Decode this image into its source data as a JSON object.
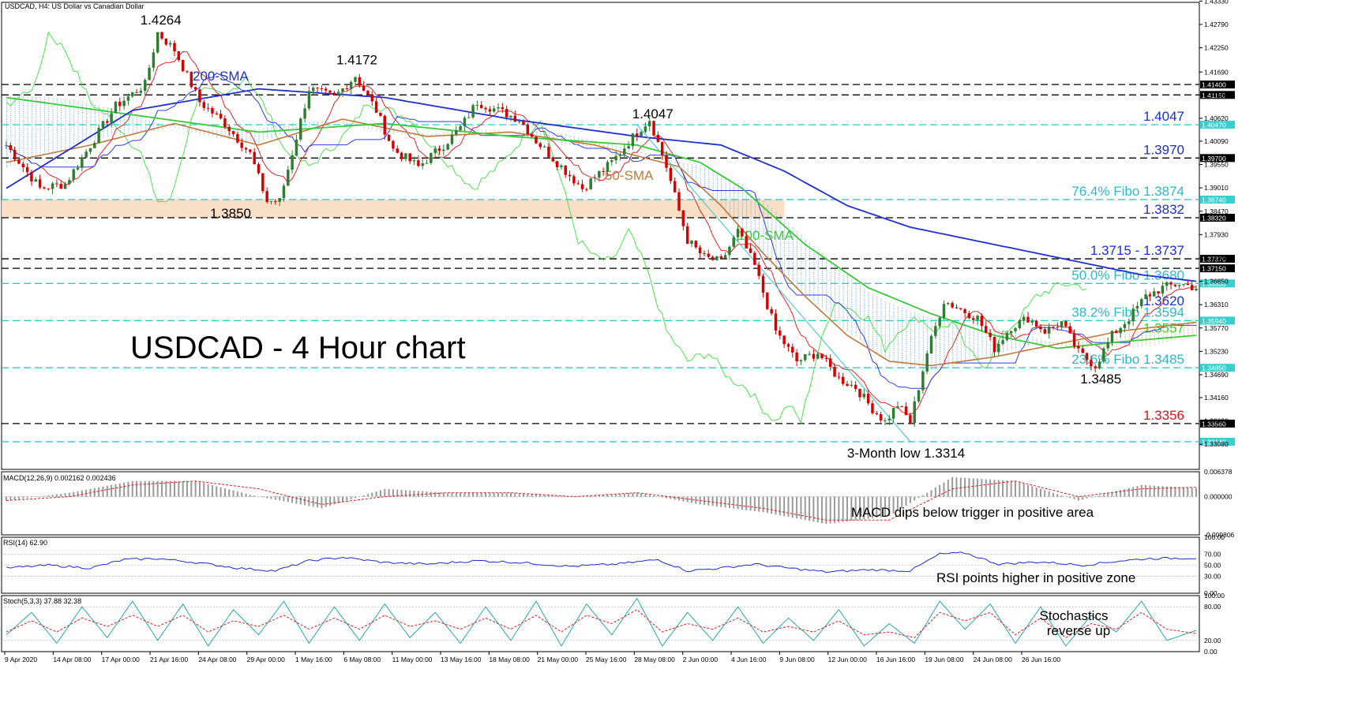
{
  "header": {
    "main": "USDCAD, H4:  US Dollar vs Canadian Dollar",
    "macd": "MACD(12,26,9) 0.002162 0.002436",
    "rsi": "RSI(14) 62.90",
    "stoch": "Stoch(5,3,3) 37.88 32.38"
  },
  "overlay": {
    "title": "USDCAD - 4 Hour chart",
    "note_macd": "MACD dips below trigger in positive area",
    "note_rsi": "RSI points higher in positive zone",
    "note_stoch_1": "Stochastics",
    "note_stoch_2": "reverse up"
  },
  "colors": {
    "bull": "#2e7d32",
    "bear": "#d50000",
    "sma200": "#1f2fd0",
    "sma100": "#3ac93a",
    "sma50": "#c07a3b",
    "tenkan": "#e0282a",
    "kijun": "#2f3fe0",
    "chikou": "#52e052",
    "cloud_blue": "#6aa6e0",
    "cloud_orange": "#e6a060",
    "zone": "#f7dcc0",
    "cyan": "#37c6c6",
    "annot_blue": "#1f2fd0",
    "annot_green": "#2fd82f",
    "annot_cyan": "#2eb8c8",
    "annot_red": "#e0101a",
    "tag_cyan": "#37d0d0",
    "tag_black": "#000000"
  },
  "chart_data": [
    {
      "type": "candlestick",
      "title": "USDCAD, H4:  US Dollar vs Canadian Dollar",
      "ylim": [
        1.325,
        1.433
      ],
      "y_ticks": [
        "1.43330",
        "1.42790",
        "1.42250",
        "1.41690",
        "1.41160",
        "1.40620",
        "1.40090",
        "1.39550",
        "1.39010",
        "1.38470",
        "1.37930",
        "1.37390",
        "1.36850",
        "1.36310",
        "1.35770",
        "1.35230",
        "1.34690",
        "1.34160",
        "1.33620",
        "1.33080"
      ],
      "x_ticks": [
        "9 Apr 2020",
        "14 Apr 08:00",
        "17 Apr 00:00",
        "21 Apr 16:00",
        "24 Apr 08:00",
        "29 Apr 00:00",
        "1 May 16:00",
        "6 May 08:00",
        "11 May 00:00",
        "13 May 16:00",
        "18 May 08:00",
        "21 May 00:00",
        "25 May 16:00",
        "28 May 08:00",
        "2 Jun 00:00",
        "4 Jun 16:00",
        "9 Jun 08:00",
        "12 Jun 00:00",
        "16 Jun 16:00",
        "19 Jun 08:00",
        "24 Jun 08:00",
        "26 Jun 16:00"
      ],
      "close_anchors": [
        [
          0,
          1.4
        ],
        [
          8,
          1.39
        ],
        [
          14,
          1.391
        ],
        [
          26,
          1.409
        ],
        [
          33,
          1.414
        ],
        [
          36,
          1.426
        ],
        [
          40,
          1.422
        ],
        [
          46,
          1.41
        ],
        [
          52,
          1.405
        ],
        [
          58,
          1.398
        ],
        [
          62,
          1.387
        ],
        [
          65,
          1.387
        ],
        [
          72,
          1.413
        ],
        [
          78,
          1.411
        ],
        [
          83,
          1.416
        ],
        [
          88,
          1.408
        ],
        [
          92,
          1.399
        ],
        [
          98,
          1.395
        ],
        [
          104,
          1.4
        ],
        [
          108,
          1.404
        ],
        [
          112,
          1.41
        ],
        [
          117,
          1.408
        ],
        [
          122,
          1.406
        ],
        [
          126,
          1.401
        ],
        [
          131,
          1.396
        ],
        [
          137,
          1.39
        ],
        [
          144,
          1.396
        ],
        [
          150,
          1.403
        ],
        [
          153,
          1.406
        ],
        [
          157,
          1.395
        ],
        [
          162,
          1.378
        ],
        [
          166,
          1.374
        ],
        [
          170,
          1.373
        ],
        [
          174,
          1.38
        ],
        [
          178,
          1.372
        ],
        [
          183,
          1.357
        ],
        [
          188,
          1.35
        ],
        [
          193,
          1.352
        ],
        [
          198,
          1.346
        ],
        [
          202,
          1.344
        ],
        [
          206,
          1.339
        ],
        [
          209,
          1.336
        ],
        [
          212,
          1.34
        ],
        [
          215,
          1.336
        ],
        [
          219,
          1.352
        ],
        [
          223,
          1.364
        ],
        [
          227,
          1.362
        ],
        [
          231,
          1.36
        ],
        [
          235,
          1.353
        ],
        [
          239,
          1.358
        ],
        [
          243,
          1.36
        ],
        [
          247,
          1.357
        ],
        [
          251,
          1.359
        ],
        [
          255,
          1.352
        ],
        [
          259,
          1.349
        ],
        [
          263,
          1.356
        ],
        [
          267,
          1.36
        ],
        [
          271,
          1.365
        ],
        [
          275,
          1.367
        ],
        [
          279,
          1.368
        ],
        [
          283,
          1.367
        ]
      ],
      "series": [
        {
          "name": "200-SMA",
          "x": [
            0,
            30,
            60,
            90,
            120,
            150,
            170,
            185,
            200,
            215,
            230,
            250,
            270,
            283
          ],
          "values": [
            1.39,
            1.408,
            1.413,
            1.411,
            1.406,
            1.402,
            1.4,
            1.394,
            1.386,
            1.381,
            1.378,
            1.374,
            1.37,
            1.3685
          ]
        },
        {
          "name": "100-SMA",
          "x": [
            0,
            30,
            60,
            90,
            120,
            150,
            165,
            175,
            190,
            205,
            220,
            235,
            250,
            265,
            283
          ],
          "values": [
            1.411,
            1.407,
            1.403,
            1.405,
            1.402,
            1.4,
            1.396,
            1.39,
            1.377,
            1.367,
            1.361,
            1.356,
            1.353,
            1.3545,
            1.356
          ]
        },
        {
          "name": "50-SMA",
          "x": [
            0,
            20,
            40,
            60,
            80,
            100,
            120,
            140,
            160,
            170,
            180,
            190,
            200,
            210,
            220,
            235,
            250,
            265,
            283
          ],
          "values": [
            1.396,
            1.4,
            1.405,
            1.4,
            1.406,
            1.402,
            1.403,
            1.4,
            1.395,
            1.386,
            1.375,
            1.365,
            1.356,
            1.35,
            1.349,
            1.351,
            1.354,
            1.357,
            1.359
          ]
        }
      ],
      "annotations": [
        {
          "text": "1.4264",
          "x": 36,
          "y": 1.4264
        },
        {
          "text": "1.4172",
          "x": 83,
          "y": 1.4172
        },
        {
          "text": "1.4047",
          "x": 150,
          "y": 1.4047
        },
        {
          "text": "1.3850",
          "x": 64,
          "y": 1.385
        },
        {
          "text": "200-SMA"
        },
        {
          "text": "50-SMA"
        },
        {
          "text": "100-SMA"
        },
        {
          "text": "1.3485",
          "x": 259,
          "y": 1.3485
        },
        {
          "text": "3-Month low 1.3314",
          "x": 215,
          "y": 1.3314
        }
      ],
      "horizontal_levels": [
        {
          "value": 1.414,
          "tag": "1.41400",
          "style": "black-dash"
        },
        {
          "value": 1.4116,
          "tag": "1.41160",
          "style": "black-dash"
        },
        {
          "value": 1.4047,
          "tag": "1.40470",
          "style": "cyan-dash",
          "label": "1.4047",
          "label_color": "blue"
        },
        {
          "value": 1.397,
          "tag": "1.39700",
          "style": "black-dash",
          "label": "1.3970",
          "label_color": "blue"
        },
        {
          "value": 1.3874,
          "tag": "1.38740",
          "style": "cyan-dash",
          "label": "76.4% Fibo 1.3874",
          "label_color": "cyan"
        },
        {
          "value": 1.3832,
          "tag": "1.38320",
          "style": "black-dash",
          "label": "1.3832",
          "label_color": "blue"
        },
        {
          "value": 1.3737,
          "tag": "1.37370",
          "style": "black-dash",
          "label": "1.3715 - 1.3737",
          "label_color": "blue"
        },
        {
          "value": 1.3715,
          "tag": "1.37150",
          "style": "black-dash"
        },
        {
          "value": 1.368,
          "tag": "1.36800",
          "style": "cyan-dash",
          "label": "50.0% Fibo 1.3680",
          "label_color": "cyan"
        },
        {
          "value": 1.362,
          "label": "1.3620",
          "label_color": "blue"
        },
        {
          "value": 1.3594,
          "tag": "1.35940",
          "style": "cyan-dash",
          "label": "38.2% Fibo 1.3594",
          "label_color": "cyan"
        },
        {
          "value": 1.3557,
          "label": "1.3557",
          "label_color": "green"
        },
        {
          "value": 1.3485,
          "tag": "1.34850",
          "style": "cyan-dash",
          "label": "23.6% Fibo 1.3485",
          "label_color": "cyan"
        },
        {
          "value": 1.3356,
          "tag": "1.33560",
          "style": "black-dash",
          "label": "1.3356",
          "label_color": "red"
        },
        {
          "value": 1.3314,
          "tag": "1.33140",
          "style": "cyan-dash"
        }
      ],
      "shaded_zone": {
        "from": 1.3832,
        "to": 1.3874,
        "x_end": 185
      }
    },
    {
      "type": "histogram",
      "title": "MACD(12,26,9) 0.002162 0.002436",
      "y_ticks": [
        "0.006378",
        "0.000000",
        "-0.009806"
      ],
      "ylim": [
        -0.009806,
        0.006378
      ],
      "series": [
        {
          "name": "MACD",
          "x": [
            0,
            15,
            30,
            45,
            60,
            75,
            90,
            105,
            120,
            135,
            150,
            165,
            180,
            195,
            210,
            225,
            240,
            255,
            270,
            283
          ],
          "values": [
            -0.001,
            0.001,
            0.004,
            0.004,
            0.0,
            -0.003,
            0.002,
            0.001,
            0.001,
            0.0,
            0.001,
            -0.002,
            -0.004,
            -0.007,
            -0.005,
            0.005,
            0.004,
            -0.001,
            0.003,
            0.0022
          ]
        },
        {
          "name": "Signal",
          "x": [
            0,
            15,
            30,
            45,
            60,
            75,
            90,
            105,
            120,
            135,
            150,
            165,
            180,
            195,
            210,
            225,
            240,
            255,
            270,
            283
          ],
          "values": [
            -0.001,
            0.0,
            0.003,
            0.004,
            0.002,
            -0.002,
            0.0,
            0.001,
            0.001,
            0.0,
            0.001,
            -0.001,
            -0.003,
            -0.006,
            -0.006,
            0.002,
            0.004,
            0.0,
            0.002,
            0.0024
          ]
        }
      ]
    },
    {
      "type": "line",
      "title": "RSI(14) 62.90",
      "y_ticks": [
        "100.00",
        "70.00",
        "50.00",
        "30.00",
        "0.00"
      ],
      "ylim": [
        0,
        100
      ],
      "series": [
        {
          "name": "RSI",
          "x": [
            0,
            10,
            20,
            28,
            36,
            45,
            55,
            64,
            72,
            80,
            90,
            100,
            112,
            122,
            134,
            145,
            155,
            162,
            170,
            178,
            186,
            195,
            205,
            215,
            222,
            228,
            236,
            246,
            256,
            265,
            272,
            283
          ],
          "values": [
            45,
            50,
            45,
            60,
            62,
            55,
            45,
            40,
            58,
            64,
            55,
            52,
            58,
            55,
            48,
            52,
            60,
            40,
            45,
            52,
            45,
            38,
            42,
            40,
            70,
            72,
            52,
            56,
            50,
            58,
            62,
            62.9
          ]
        }
      ]
    },
    {
      "type": "line",
      "title": "Stoch(5,3,3) 37.88 32.38",
      "y_ticks": [
        "100.00",
        "80.00",
        "20.00",
        "0.00"
      ],
      "ylim": [
        0,
        100
      ],
      "series": [
        {
          "name": "%K",
          "x": [
            0,
            6,
            12,
            18,
            24,
            30,
            36,
            42,
            48,
            54,
            60,
            66,
            72,
            78,
            84,
            90,
            96,
            102,
            108,
            114,
            120,
            126,
            132,
            138,
            144,
            150,
            156,
            162,
            168,
            174,
            180,
            186,
            192,
            198,
            204,
            210,
            216,
            222,
            228,
            234,
            240,
            246,
            252,
            258,
            264,
            270,
            276,
            283
          ],
          "values": [
            30,
            70,
            15,
            80,
            25,
            90,
            20,
            85,
            10,
            75,
            30,
            90,
            15,
            80,
            20,
            85,
            25,
            70,
            15,
            80,
            20,
            90,
            10,
            85,
            30,
            95,
            10,
            70,
            20,
            80,
            15,
            60,
            20,
            75,
            10,
            50,
            15,
            90,
            40,
            85,
            15,
            80,
            10,
            65,
            35,
            90,
            20,
            37.88
          ]
        },
        {
          "name": "%D",
          "x": [
            0,
            6,
            12,
            18,
            24,
            30,
            36,
            42,
            48,
            54,
            60,
            66,
            72,
            78,
            84,
            90,
            96,
            102,
            108,
            114,
            120,
            126,
            132,
            138,
            144,
            150,
            156,
            162,
            168,
            174,
            180,
            186,
            192,
            198,
            204,
            210,
            216,
            222,
            228,
            234,
            240,
            246,
            252,
            258,
            264,
            270,
            276,
            283
          ],
          "values": [
            35,
            55,
            35,
            60,
            45,
            65,
            45,
            65,
            35,
            55,
            45,
            65,
            40,
            60,
            40,
            65,
            45,
            55,
            40,
            60,
            40,
            65,
            35,
            65,
            50,
            75,
            35,
            50,
            40,
            60,
            35,
            45,
            35,
            55,
            30,
            35,
            25,
            70,
            55,
            70,
            30,
            60,
            25,
            50,
            40,
            70,
            40,
            32.38
          ]
        }
      ]
    }
  ]
}
